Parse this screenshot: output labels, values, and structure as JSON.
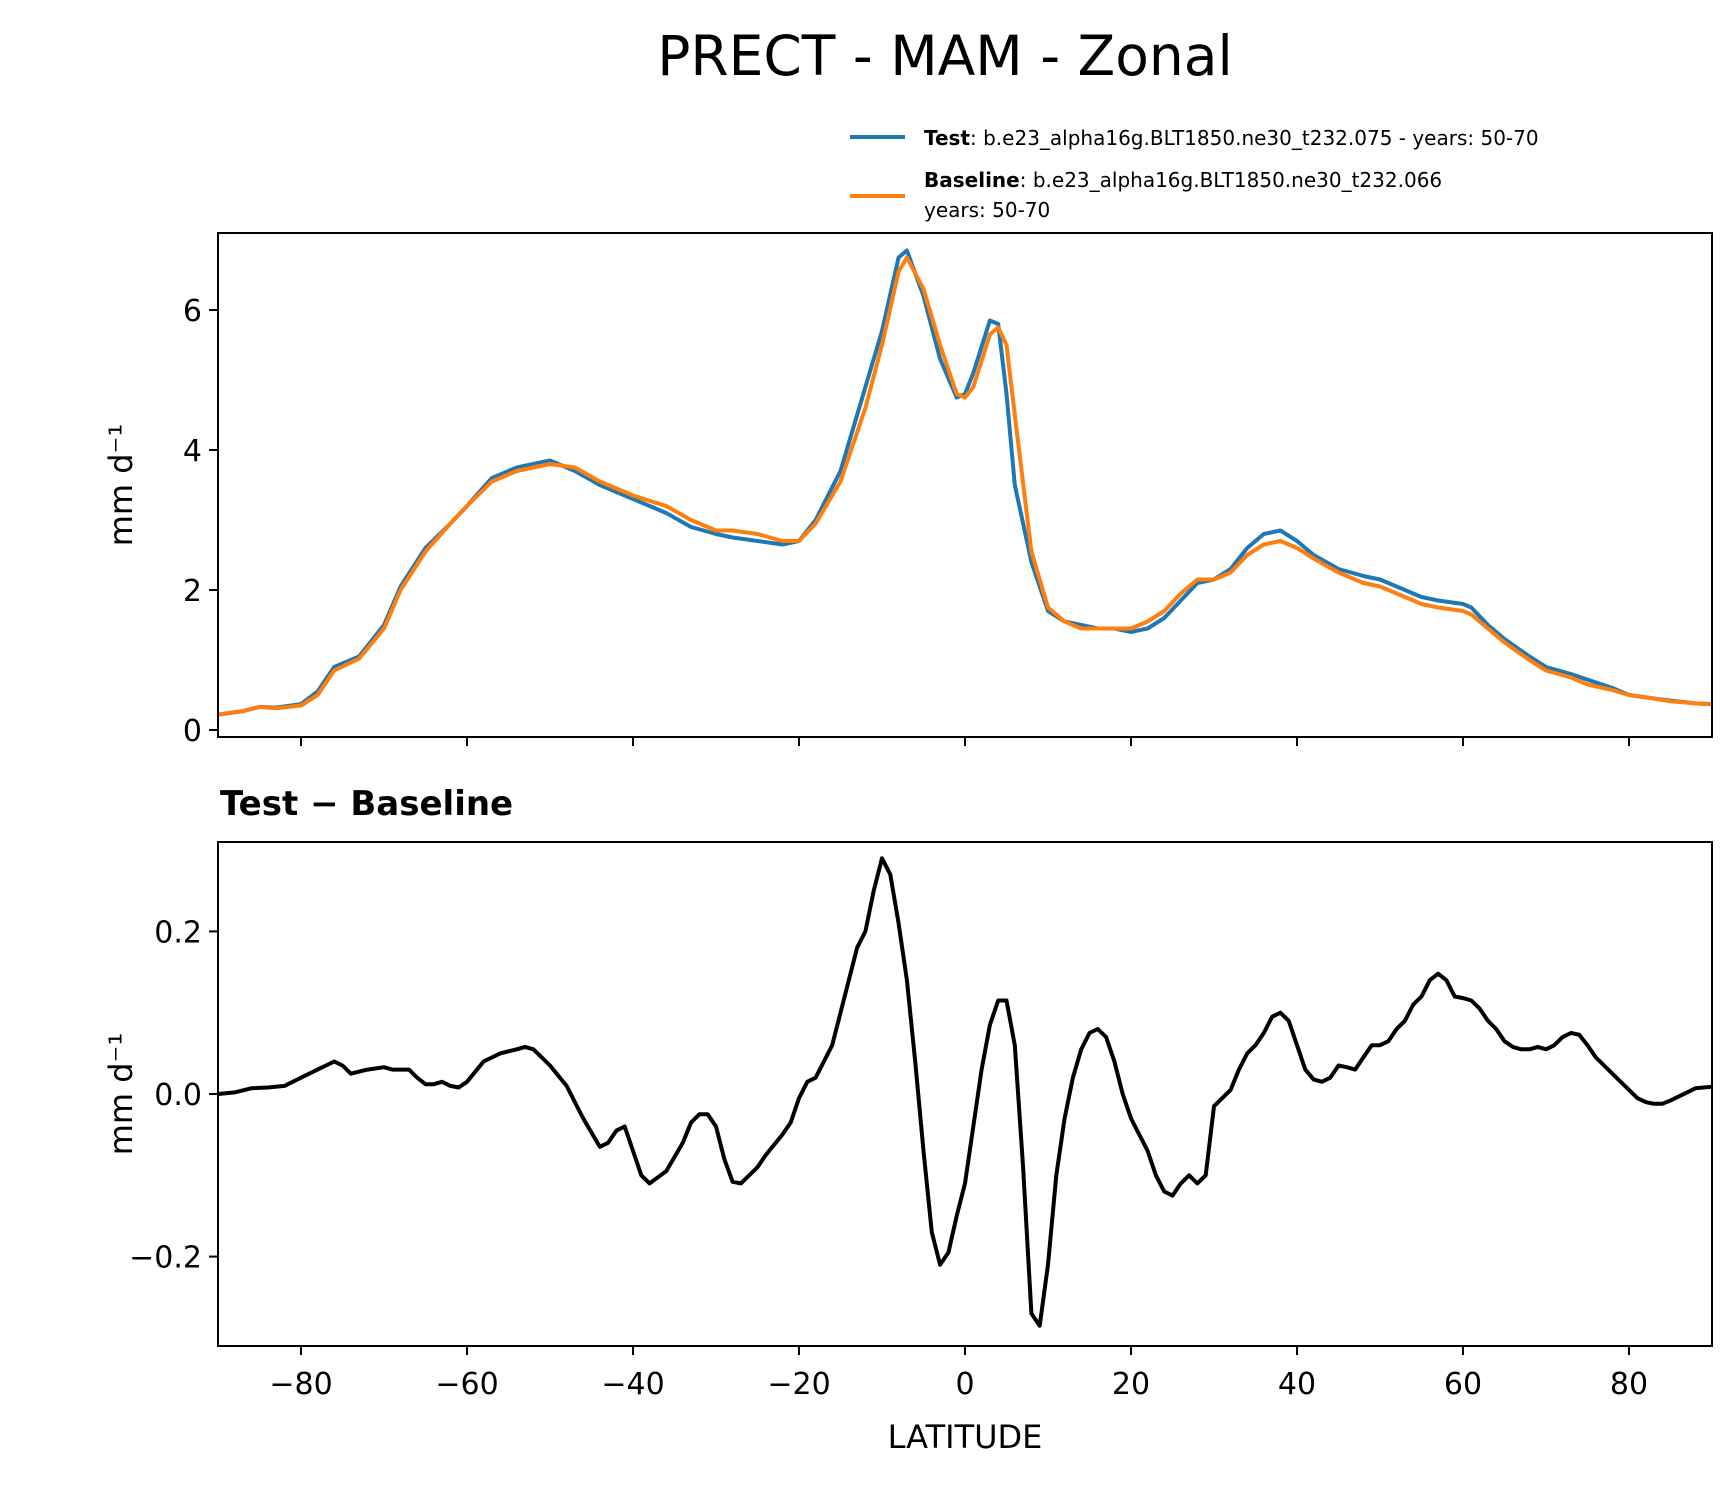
{
  "chart_data": [
    {
      "type": "line",
      "title": "PRECT - MAM - Zonal",
      "xlabel": "",
      "ylabel": "mm d⁻¹",
      "xlim": [
        -90,
        90
      ],
      "ylim": [
        -0.1,
        7.1
      ],
      "yticks": [
        0,
        2,
        4,
        6
      ],
      "ytick_labels": [
        "0",
        "2",
        "4",
        "6"
      ],
      "legend": [
        {
          "name": "Test",
          "desc": ": b.e23_alpha16g.BLT1850.ne30_t232.075 - years: 50-70",
          "desc2": ""
        },
        {
          "name": "Baseline",
          "desc": ": b.e23_alpha16g.BLT1850.ne30_t232.066",
          "desc2": "years: 50-70"
        }
      ],
      "legend_position": "top-right (above axes)",
      "x": [
        -90,
        -87,
        -85,
        -83,
        -80,
        -78,
        -76,
        -73,
        -70,
        -68,
        -65,
        -62,
        -60,
        -57,
        -54,
        -50,
        -47,
        -44,
        -40,
        -36,
        -33,
        -30,
        -28,
        -25,
        -22,
        -20,
        -18,
        -15,
        -12,
        -10,
        -8,
        -7,
        -5,
        -3,
        -1,
        0,
        1,
        3,
        4,
        5,
        6,
        8,
        10,
        12,
        14,
        16,
        18,
        20,
        22,
        24,
        26,
        28,
        30,
        32,
        34,
        36,
        38,
        40,
        42,
        45,
        48,
        50,
        53,
        55,
        57,
        60,
        61,
        63,
        65,
        68,
        70,
        73,
        75,
        78,
        80,
        83,
        85,
        88,
        90
      ],
      "series": [
        {
          "name": "Test",
          "color": "#1f77b4",
          "values": [
            0.22,
            0.27,
            0.33,
            0.32,
            0.37,
            0.55,
            0.9,
            1.05,
            1.5,
            2.05,
            2.6,
            2.95,
            3.2,
            3.6,
            3.75,
            3.85,
            3.7,
            3.5,
            3.3,
            3.1,
            2.9,
            2.8,
            2.75,
            2.7,
            2.65,
            2.7,
            3.0,
            3.7,
            4.9,
            5.7,
            6.75,
            6.85,
            6.2,
            5.3,
            4.75,
            4.8,
            5.1,
            5.85,
            5.8,
            4.8,
            3.5,
            2.4,
            1.7,
            1.55,
            1.5,
            1.45,
            1.45,
            1.4,
            1.45,
            1.6,
            1.85,
            2.1,
            2.15,
            2.3,
            2.6,
            2.8,
            2.85,
            2.7,
            2.5,
            2.3,
            2.2,
            2.15,
            2.0,
            1.9,
            1.85,
            1.8,
            1.75,
            1.5,
            1.3,
            1.05,
            0.9,
            0.8,
            0.72,
            0.6,
            0.5,
            0.45,
            0.42,
            0.38,
            0.37
          ]
        },
        {
          "name": "Baseline",
          "color": "#ff7f0e",
          "values": [
            0.22,
            0.27,
            0.33,
            0.31,
            0.35,
            0.5,
            0.85,
            1.02,
            1.45,
            2.0,
            2.55,
            2.95,
            3.2,
            3.55,
            3.7,
            3.8,
            3.75,
            3.55,
            3.35,
            3.2,
            3.0,
            2.85,
            2.85,
            2.8,
            2.7,
            2.7,
            2.95,
            3.55,
            4.6,
            5.5,
            6.55,
            6.75,
            6.3,
            5.5,
            4.8,
            4.75,
            4.9,
            5.65,
            5.75,
            5.5,
            4.5,
            2.55,
            1.75,
            1.55,
            1.45,
            1.45,
            1.45,
            1.45,
            1.55,
            1.7,
            1.95,
            2.15,
            2.15,
            2.25,
            2.5,
            2.65,
            2.7,
            2.6,
            2.45,
            2.25,
            2.1,
            2.05,
            1.9,
            1.8,
            1.75,
            1.7,
            1.65,
            1.45,
            1.25,
            1.0,
            0.85,
            0.75,
            0.65,
            0.57,
            0.5,
            0.45,
            0.41,
            0.38,
            0.37
          ]
        }
      ]
    },
    {
      "type": "line",
      "title": "Test − Baseline",
      "xlabel": "LATITUDE",
      "ylabel": "mm d⁻¹",
      "xlim": [
        -90,
        90
      ],
      "ylim": [
        -0.31,
        0.31
      ],
      "xticks": [
        -80,
        -60,
        -40,
        -20,
        0,
        20,
        40,
        60,
        80
      ],
      "xtick_labels": [
        "−80",
        "−60",
        "−40",
        "−20",
        "0",
        "20",
        "40",
        "60",
        "80"
      ],
      "yticks": [
        -0.2,
        0.0,
        0.2
      ],
      "ytick_labels": [
        "−0.2",
        "0.0",
        "0.2"
      ],
      "x": [
        -90,
        -88,
        -86,
        -84,
        -82,
        -80,
        -78,
        -76,
        -75,
        -74,
        -72,
        -70,
        -69,
        -67,
        -66,
        -65,
        -64,
        -63,
        -62,
        -61,
        -60,
        -58,
        -56,
        -54,
        -53,
        -52,
        -50,
        -48,
        -46,
        -44,
        -43,
        -42,
        -41,
        -40,
        -39,
        -38,
        -36,
        -34,
        -33,
        -32,
        -31,
        -30,
        -29,
        -28,
        -27,
        -26,
        -25,
        -24,
        -22,
        -21,
        -20,
        -19,
        -18,
        -17,
        -16,
        -15,
        -14,
        -13,
        -12,
        -11,
        -10,
        -9,
        -8,
        -7,
        -6,
        -5,
        -4,
        -3,
        -2,
        -1,
        0,
        1,
        2,
        3,
        4,
        5,
        6,
        7,
        8,
        9,
        10,
        11,
        12,
        13,
        14,
        15,
        16,
        17,
        18,
        19,
        20,
        21,
        22,
        23,
        24,
        25,
        26,
        27,
        28,
        29,
        30,
        31,
        32,
        33,
        34,
        35,
        36,
        37,
        38,
        39,
        40,
        41,
        42,
        43,
        44,
        45,
        46,
        47,
        48,
        49,
        50,
        51,
        52,
        53,
        54,
        55,
        56,
        57,
        58,
        59,
        60,
        61,
        62,
        63,
        64,
        65,
        66,
        67,
        68,
        69,
        70,
        71,
        72,
        73,
        74,
        75,
        76,
        77,
        78,
        79,
        80,
        81,
        82,
        83,
        84,
        85,
        86,
        87,
        88,
        89,
        90
      ],
      "series": [
        {
          "name": "Test − Baseline",
          "color": "#000000",
          "values": [
            0.0,
            0.002,
            0.007,
            0.008,
            0.01,
            0.02,
            0.03,
            0.04,
            0.035,
            0.025,
            0.03,
            0.033,
            0.03,
            0.03,
            0.02,
            0.012,
            0.012,
            0.015,
            0.01,
            0.008,
            0.015,
            0.04,
            0.05,
            0.055,
            0.058,
            0.055,
            0.035,
            0.01,
            -0.03,
            -0.065,
            -0.06,
            -0.045,
            -0.04,
            -0.07,
            -0.1,
            -0.11,
            -0.095,
            -0.06,
            -0.035,
            -0.025,
            -0.025,
            -0.04,
            -0.08,
            -0.108,
            -0.11,
            -0.1,
            -0.09,
            -0.075,
            -0.05,
            -0.035,
            -0.005,
            0.015,
            0.02,
            0.04,
            0.06,
            0.1,
            0.14,
            0.18,
            0.2,
            0.25,
            0.29,
            0.27,
            0.21,
            0.14,
            0.04,
            -0.07,
            -0.17,
            -0.21,
            -0.195,
            -0.15,
            -0.11,
            -0.04,
            0.03,
            0.085,
            0.115,
            0.115,
            0.06,
            -0.09,
            -0.27,
            -0.285,
            -0.21,
            -0.1,
            -0.03,
            0.02,
            0.055,
            0.075,
            0.08,
            0.07,
            0.04,
            0.0,
            -0.03,
            -0.05,
            -0.07,
            -0.1,
            -0.12,
            -0.125,
            -0.11,
            -0.1,
            -0.11,
            -0.1,
            -0.015,
            -0.005,
            0.005,
            0.03,
            0.05,
            0.06,
            0.075,
            0.095,
            0.1,
            0.09,
            0.06,
            0.03,
            0.018,
            0.015,
            0.02,
            0.035,
            0.033,
            0.03,
            0.045,
            0.06,
            0.06,
            0.065,
            0.08,
            0.09,
            0.11,
            0.12,
            0.14,
            0.148,
            0.14,
            0.12,
            0.118,
            0.115,
            0.105,
            0.09,
            0.08,
            0.065,
            0.058,
            0.055,
            0.055,
            0.058,
            0.055,
            0.06,
            0.07,
            0.075,
            0.073,
            0.06,
            0.045,
            0.035,
            0.025,
            0.015,
            0.005,
            -0.005,
            -0.01,
            -0.012,
            -0.012,
            -0.008,
            -0.003,
            0.002,
            0.007,
            0.008,
            0.009
          ]
        }
      ]
    }
  ]
}
